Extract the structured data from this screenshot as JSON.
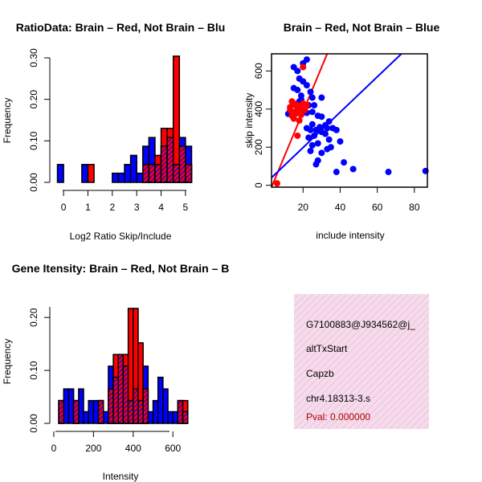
{
  "colors": {
    "red": "#ff0000",
    "blue": "#0000ff",
    "purple": "#a020f0",
    "pink": "#f3d6e8",
    "pval": "#b00000",
    "black": "#000000"
  },
  "chart_data": [
    {
      "type": "bar",
      "title": "RatioData: Brain – Red, Not Brain – Blu",
      "xlabel": "Log2 Ratio Skip/Include",
      "ylabel": "Frequency",
      "xlim": [
        -0.3,
        5.3
      ],
      "ylim": [
        0,
        0.3
      ],
      "xticks": [
        "0",
        "1",
        "2",
        "3",
        "4",
        "5"
      ],
      "yticks": [
        "0.00",
        "0.10",
        "0.20",
        "0.30"
      ],
      "bin_width": 0.25,
      "series": [
        {
          "name": "Not Brain",
          "color": "blue",
          "x": [
            -0.25,
            0.75,
            2.0,
            2.25,
            2.5,
            2.75,
            3.0,
            3.25,
            3.5,
            3.75,
            4.0,
            4.25,
            4.5,
            4.75,
            5.0
          ],
          "values": [
            0.043,
            0.043,
            0.022,
            0.022,
            0.043,
            0.065,
            0.022,
            0.087,
            0.108,
            0.043,
            0.087,
            0.108,
            0.043,
            0.108,
            0.087
          ]
        },
        {
          "name": "Brain",
          "color": "red",
          "x": [
            1.0,
            3.25,
            3.5,
            3.75,
            4.0,
            4.25,
            4.5,
            4.75,
            5.0
          ],
          "values": [
            0.043,
            0.043,
            0.043,
            0.065,
            0.13,
            0.13,
            0.304,
            0.087,
            0.043
          ]
        }
      ]
    },
    {
      "type": "scatter",
      "title": "Brain – Red, Not Brain – Blue",
      "xlabel": "include intensity",
      "ylabel": "skip intensity",
      "xlim": [
        3,
        87
      ],
      "ylim": [
        -10,
        690
      ],
      "xticks": [
        "20",
        "40",
        "60",
        "80"
      ],
      "yticks": [
        "0",
        "200",
        "400",
        "600"
      ],
      "series": [
        {
          "name": "Not Brain",
          "color": "blue",
          "points": [
            [
              15,
              620
            ],
            [
              20,
              640
            ],
            [
              22,
              660
            ],
            [
              17,
              600
            ],
            [
              18,
              560
            ],
            [
              20,
              545
            ],
            [
              22,
              525
            ],
            [
              15,
              510
            ],
            [
              17,
              500
            ],
            [
              24,
              490
            ],
            [
              25,
              460
            ],
            [
              30,
              460
            ],
            [
              19,
              450
            ],
            [
              18,
              440
            ],
            [
              21,
              420
            ],
            [
              23,
              420
            ],
            [
              26,
              420
            ],
            [
              20,
              395
            ],
            [
              22,
              380
            ],
            [
              25,
              385
            ],
            [
              28,
              365
            ],
            [
              30,
              360
            ],
            [
              34,
              335
            ],
            [
              32,
              315
            ],
            [
              29,
              305
            ],
            [
              22,
              300
            ],
            [
              24,
              290
            ],
            [
              27,
              290
            ],
            [
              25,
              320
            ],
            [
              33,
              300
            ],
            [
              36,
              300
            ],
            [
              38,
              290
            ],
            [
              32,
              270
            ],
            [
              23,
              250
            ],
            [
              25,
              210
            ],
            [
              28,
              220
            ],
            [
              34,
              240
            ],
            [
              40,
              230
            ],
            [
              24,
              180
            ],
            [
              30,
              170
            ],
            [
              35,
              200
            ],
            [
              28,
              130
            ],
            [
              27,
              110
            ],
            [
              42,
              120
            ],
            [
              38,
              70
            ],
            [
              47,
              85
            ],
            [
              66,
              70
            ],
            [
              86,
              75
            ],
            [
              12,
              375
            ],
            [
              19,
              470
            ],
            [
              21,
              410
            ],
            [
              30,
              280
            ],
            [
              33,
              190
            ],
            [
              26,
              260
            ]
          ]
        },
        {
          "name": "Brain",
          "color": "red",
          "points": [
            [
              6,
              10
            ],
            [
              14,
              440
            ],
            [
              15,
              430
            ],
            [
              16,
              420
            ],
            [
              13,
              410
            ],
            [
              17,
              400
            ],
            [
              18,
              390
            ],
            [
              15,
              385
            ],
            [
              16,
              375
            ],
            [
              19,
              370
            ],
            [
              14,
              365
            ],
            [
              17,
              420
            ],
            [
              20,
              430
            ],
            [
              22,
              420
            ],
            [
              13,
              395
            ],
            [
              18,
              340
            ],
            [
              17,
              260
            ],
            [
              20,
              620
            ],
            [
              15,
              350
            ],
            [
              19,
              405
            ],
            [
              21,
              395
            ]
          ]
        }
      ],
      "fit_lines": [
        {
          "name": "Brain fit",
          "color": "red",
          "from": [
            3,
            -10
          ],
          "to": [
            33,
            690
          ]
        },
        {
          "name": "Not Brain fit",
          "color": "blue",
          "from": [
            3,
            40
          ],
          "to": [
            73,
            690
          ]
        }
      ]
    },
    {
      "type": "bar",
      "title": "Gene Itensity: Brain – Red, Not Brain – B",
      "xlabel": "Intensity",
      "ylabel": "Frequency",
      "xlim": [
        -20,
        680
      ],
      "ylim": [
        0,
        0.22
      ],
      "xticks": [
        "0",
        "200",
        "400",
        "600"
      ],
      "yticks": [
        "0.00",
        "0.10",
        "0.20"
      ],
      "bin_width": 25,
      "series": [
        {
          "name": "Not Brain",
          "color": "blue",
          "x": [
            25,
            50,
            75,
            100,
            125,
            150,
            175,
            200,
            225,
            250,
            275,
            300,
            325,
            350,
            375,
            400,
            425,
            450,
            475,
            500,
            525,
            550,
            575,
            600,
            625,
            650
          ],
          "values": [
            0.043,
            0.065,
            0.065,
            0.043,
            0.065,
            0.022,
            0.043,
            0.043,
            0.043,
            0.022,
            0.108,
            0.087,
            0.13,
            0.108,
            0.043,
            0.065,
            0.043,
            0.108,
            0.022,
            0.043,
            0.087,
            0.065,
            0.022,
            0.022,
            0.043,
            0.022
          ]
        },
        {
          "name": "Brain",
          "color": "red",
          "x": [
            25,
            100,
            225,
            275,
            300,
            325,
            350,
            375,
            400,
            425,
            450,
            625,
            650
          ],
          "values": [
            0.043,
            0.043,
            0.043,
            0.065,
            0.13,
            0.13,
            0.13,
            0.217,
            0.217,
            0.152,
            0.065,
            0.043,
            0.043
          ]
        }
      ]
    }
  ],
  "info_box": {
    "lines": [
      "G7100883@J934562@j_",
      "altTxStart",
      "Capzb",
      "chr4.18313-3.s"
    ],
    "pval": "Pval: 0.000000"
  }
}
